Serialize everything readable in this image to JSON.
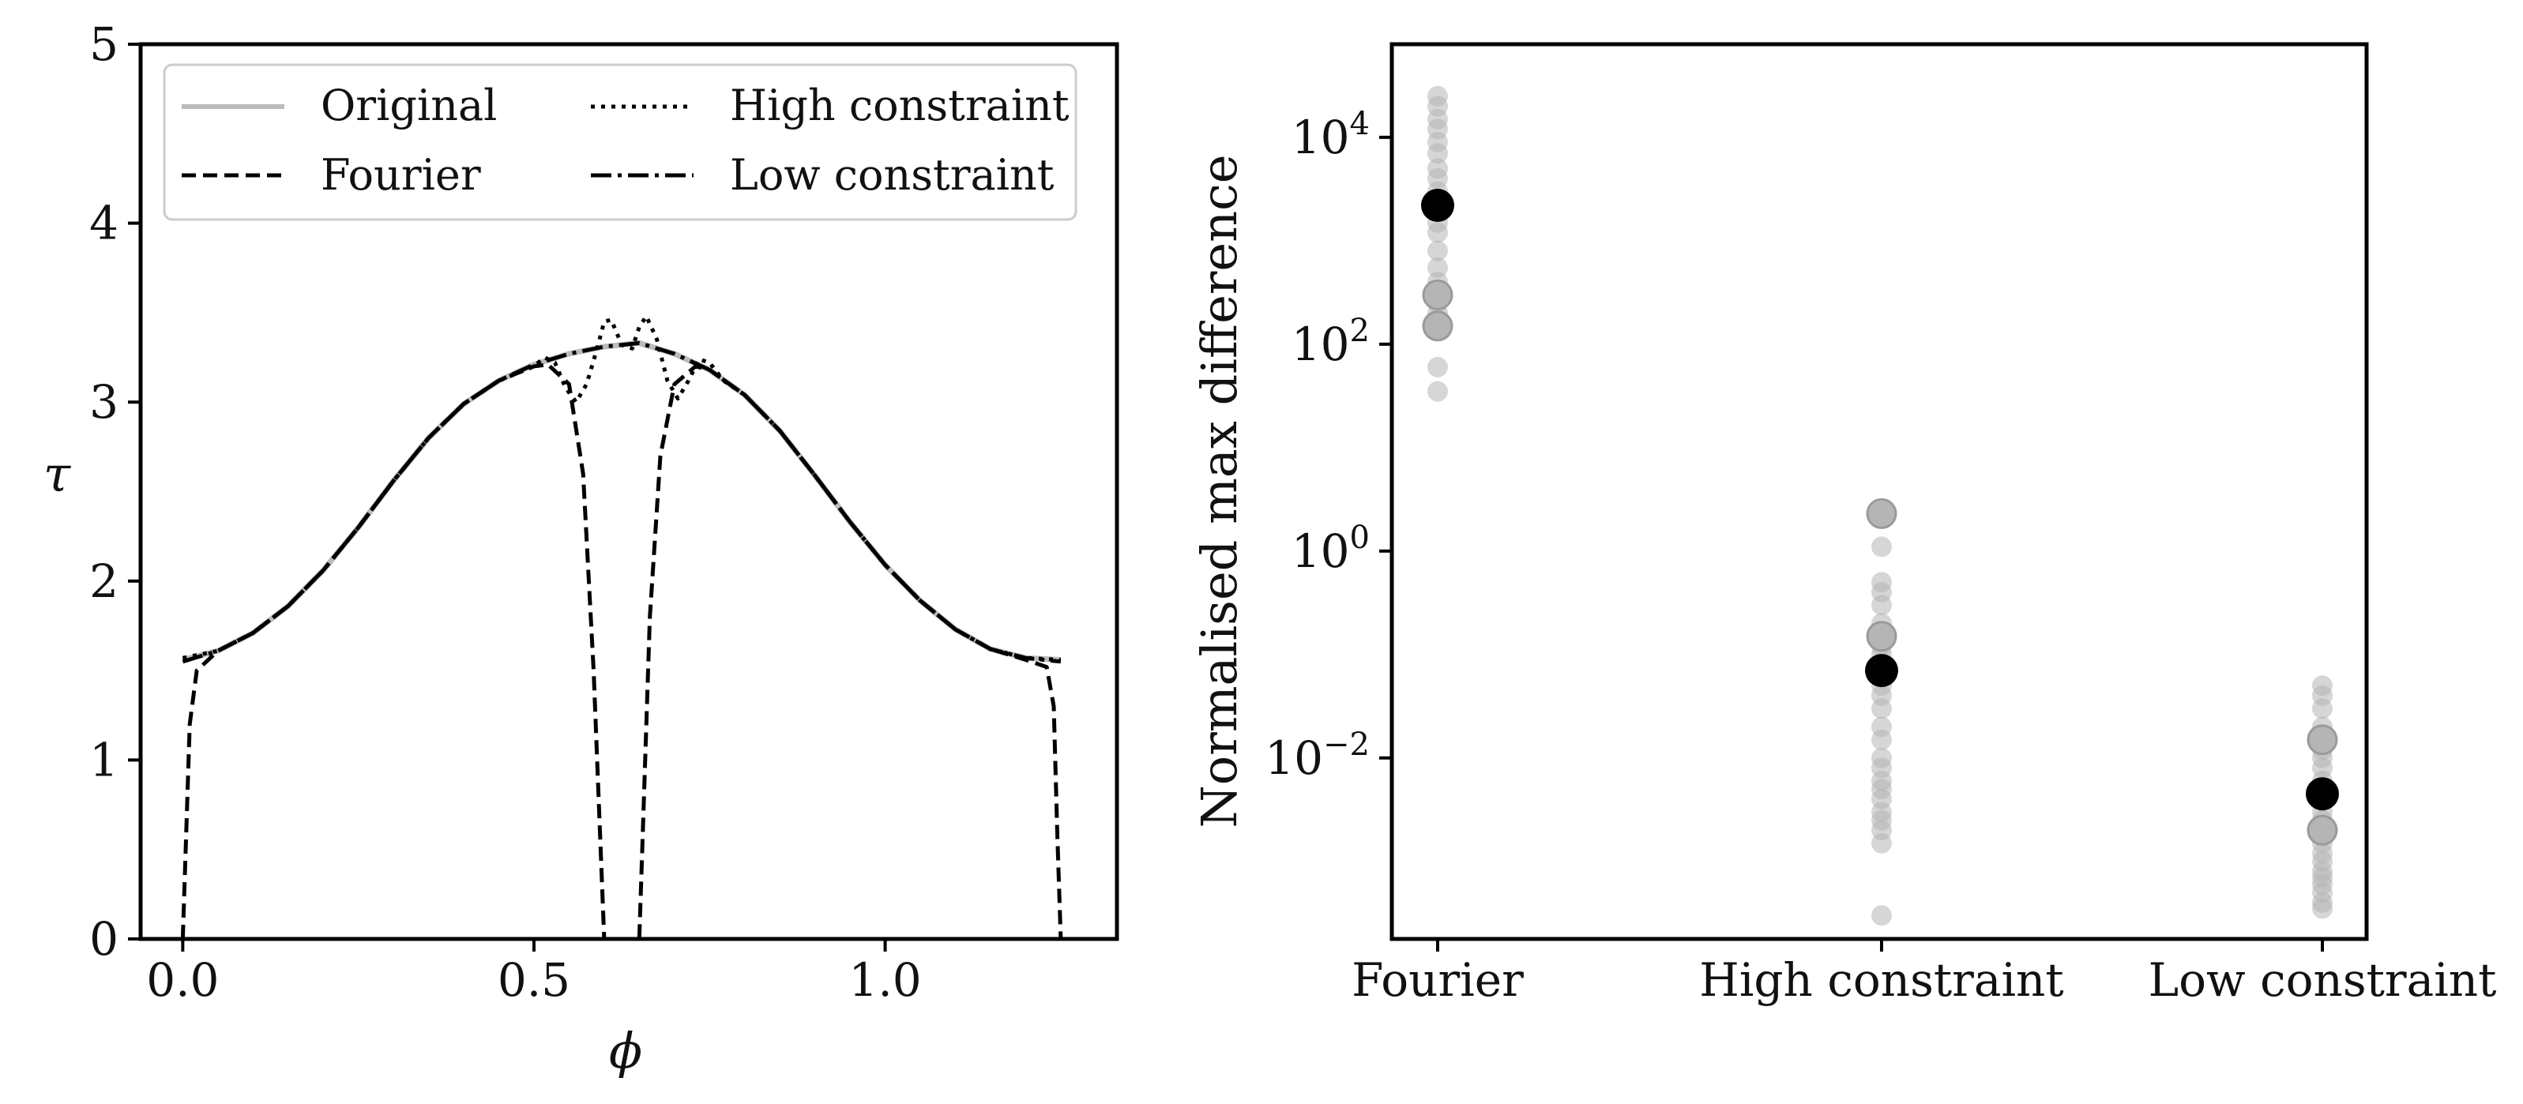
{
  "chart_data": [
    {
      "type": "line",
      "xlabel": "ϕ",
      "ylabel": "τ",
      "xlim": [
        -0.06,
        1.33
      ],
      "ylim": [
        0,
        5
      ],
      "xticks": [
        0.0,
        0.5,
        1.0
      ],
      "xtick_labels": [
        "0.0",
        "0.5",
        "1.0"
      ],
      "yticks": [
        0,
        1,
        2,
        3,
        4,
        5
      ],
      "ytick_labels": [
        "0",
        "1",
        "2",
        "3",
        "4",
        "5"
      ],
      "grid": false,
      "legend": {
        "location": "top",
        "columns": 2
      },
      "series": [
        {
          "name": "Original",
          "style": "solid",
          "color": "#bbbbbb",
          "x": [
            0.0,
            0.05,
            0.1,
            0.15,
            0.2,
            0.25,
            0.3,
            0.35,
            0.4,
            0.45,
            0.5,
            0.55,
            0.6,
            0.65,
            0.7,
            0.75,
            0.8,
            0.85,
            0.9,
            0.95,
            1.0,
            1.05,
            1.1,
            1.15,
            1.2,
            1.25
          ],
          "y": [
            1.56,
            1.61,
            1.71,
            1.86,
            2.06,
            2.3,
            2.56,
            2.8,
            2.99,
            3.12,
            3.21,
            3.27,
            3.31,
            3.33,
            3.27,
            3.18,
            3.04,
            2.84,
            2.59,
            2.33,
            2.09,
            1.89,
            1.73,
            1.62,
            1.57,
            1.56
          ]
        },
        {
          "name": "Fourier",
          "style": "dashed",
          "color": "#000000",
          "x": [
            0.0,
            0.005,
            0.01,
            0.02,
            0.05,
            0.1,
            0.15,
            0.2,
            0.25,
            0.3,
            0.35,
            0.4,
            0.45,
            0.5,
            0.52,
            0.55,
            0.57,
            0.585,
            0.595,
            0.6,
            0.605,
            0.615,
            0.625,
            0.635,
            0.645,
            0.65,
            0.655,
            0.665,
            0.68,
            0.7,
            0.73,
            0.75,
            0.8,
            0.85,
            0.9,
            0.95,
            1.0,
            1.05,
            1.1,
            1.15,
            1.2,
            1.23,
            1.24,
            1.245,
            1.25
          ],
          "y": [
            0.0,
            0.6,
            1.2,
            1.5,
            1.61,
            1.71,
            1.86,
            2.06,
            2.3,
            2.56,
            2.8,
            2.99,
            3.12,
            3.2,
            3.21,
            3.1,
            2.6,
            1.5,
            0.5,
            0.0,
            0.0,
            0.0,
            0.0,
            0.0,
            0.0,
            0.0,
            0.6,
            1.8,
            2.7,
            3.1,
            3.2,
            3.18,
            3.04,
            2.84,
            2.59,
            2.33,
            2.09,
            1.89,
            1.73,
            1.62,
            1.56,
            1.52,
            1.3,
            0.6,
            0.0
          ]
        },
        {
          "name": "High constraint",
          "style": "dotted",
          "color": "#000000",
          "x": [
            0.0,
            0.05,
            0.1,
            0.15,
            0.2,
            0.25,
            0.3,
            0.35,
            0.4,
            0.45,
            0.5,
            0.515,
            0.53,
            0.545,
            0.56,
            0.575,
            0.59,
            0.6,
            0.61,
            0.625,
            0.64,
            0.65,
            0.66,
            0.675,
            0.69,
            0.705,
            0.72,
            0.735,
            0.75,
            0.77,
            0.8,
            0.85,
            0.9,
            0.95,
            1.0,
            1.05,
            1.1,
            1.15,
            1.2,
            1.25
          ],
          "y": [
            1.57,
            1.61,
            1.71,
            1.86,
            2.06,
            2.3,
            2.56,
            2.8,
            2.99,
            3.12,
            3.2,
            3.25,
            3.22,
            3.08,
            3.0,
            3.1,
            3.3,
            3.45,
            3.46,
            3.32,
            3.3,
            3.42,
            3.48,
            3.35,
            3.12,
            3.02,
            3.12,
            3.24,
            3.22,
            3.12,
            3.04,
            2.84,
            2.59,
            2.33,
            2.09,
            1.89,
            1.73,
            1.62,
            1.57,
            1.56
          ]
        },
        {
          "name": "Low constraint",
          "style": "dashdot",
          "color": "#000000",
          "x": [
            0.0,
            0.05,
            0.1,
            0.15,
            0.2,
            0.25,
            0.3,
            0.35,
            0.4,
            0.45,
            0.5,
            0.55,
            0.6,
            0.65,
            0.7,
            0.75,
            0.8,
            0.85,
            0.9,
            0.95,
            1.0,
            1.05,
            1.1,
            1.15,
            1.2,
            1.25
          ],
          "y": [
            1.55,
            1.61,
            1.71,
            1.86,
            2.06,
            2.3,
            2.56,
            2.8,
            2.99,
            3.12,
            3.21,
            3.27,
            3.31,
            3.33,
            3.27,
            3.18,
            3.04,
            2.84,
            2.59,
            2.33,
            2.09,
            1.89,
            1.73,
            1.62,
            1.57,
            1.55
          ]
        }
      ]
    },
    {
      "type": "scatter",
      "ylabel": "Normalised max difference",
      "yscale": "log",
      "ylim_log10": [
        -3.75,
        4.9
      ],
      "categories": [
        "Fourier",
        "High constraint",
        "Low constraint"
      ],
      "yticks_log10": [
        -2,
        0,
        2,
        4
      ],
      "ytick_labels": [
        {
          "base": "10",
          "exp": "−2"
        },
        {
          "base": "10",
          "exp": "0"
        },
        {
          "base": "10",
          "exp": "2"
        },
        {
          "base": "10",
          "exp": "4"
        }
      ],
      "grid": false,
      "point_color": "#b5b5b5",
      "mean_color": "#000000",
      "points": [
        {
          "category": "Fourier",
          "values": [
            25000,
            20000,
            15000,
            12000,
            9000,
            7000,
            5000,
            4000,
            3000,
            2500,
            2000,
            1500,
            1200,
            800,
            550,
            400,
            300,
            280,
            250,
            200,
            160,
            140,
            60,
            35
          ],
          "mean": 2200,
          "emphasized": [
            300,
            150
          ]
        },
        {
          "category": "High constraint",
          "values": [
            2.3,
            1.1,
            0.5,
            0.4,
            0.3,
            0.2,
            0.15,
            0.12,
            0.1,
            0.08,
            0.06,
            0.05,
            0.04,
            0.03,
            0.02,
            0.015,
            0.01,
            0.008,
            0.006,
            0.005,
            0.004,
            0.003,
            0.0025,
            0.002,
            0.0015,
            0.0003
          ],
          "mean": 0.07,
          "emphasized": [
            2.3,
            0.15
          ]
        },
        {
          "category": "Low constraint",
          "values": [
            0.05,
            0.04,
            0.03,
            0.02,
            0.015,
            0.012,
            0.01,
            0.008,
            0.006,
            0.005,
            0.004,
            0.003,
            0.0025,
            0.002,
            0.0018,
            0.0015,
            0.0012,
            0.001,
            0.0008,
            0.0007,
            0.0006,
            0.0005,
            0.0004,
            0.00035
          ],
          "mean": 0.0045,
          "emphasized": [
            0.015,
            0.002
          ]
        }
      ]
    }
  ]
}
